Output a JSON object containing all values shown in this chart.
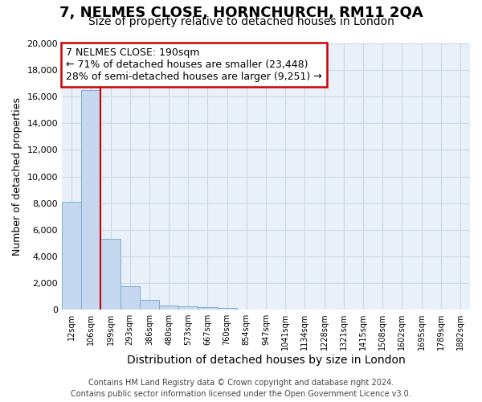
{
  "title": "7, NELMES CLOSE, HORNCHURCH, RM11 2QA",
  "subtitle": "Size of property relative to detached houses in London",
  "xlabel": "Distribution of detached houses by size in London",
  "ylabel": "Number of detached properties",
  "footer_line1": "Contains HM Land Registry data © Crown copyright and database right 2024.",
  "footer_line2": "Contains public sector information licensed under the Open Government Licence v3.0.",
  "annotation_title": "7 NELMES CLOSE: 190sqm",
  "annotation_line1": "← 71% of detached houses are smaller (23,448)",
  "annotation_line2": "28% of semi-detached houses are larger (9,251) →",
  "bar_color": "#c5d8f0",
  "bar_edge_color": "#7bafd4",
  "vline_color": "#cc0000",
  "annotation_box_edge_color": "#cc0000",
  "grid_color": "#c8d8e8",
  "background_color": "#eaf0f8",
  "categories": [
    "12sqm",
    "106sqm",
    "199sqm",
    "293sqm",
    "386sqm",
    "480sqm",
    "573sqm",
    "667sqm",
    "760sqm",
    "854sqm",
    "947sqm",
    "1041sqm",
    "1134sqm",
    "1228sqm",
    "1321sqm",
    "1415sqm",
    "1508sqm",
    "1602sqm",
    "1695sqm",
    "1789sqm",
    "1882sqm"
  ],
  "bar_heights": [
    8100,
    16500,
    5300,
    1750,
    750,
    325,
    225,
    175,
    150,
    0,
    0,
    0,
    0,
    0,
    0,
    0,
    0,
    0,
    0,
    0,
    0
  ],
  "vline_index": 1.5,
  "ylim": [
    0,
    20000
  ],
  "yticks": [
    0,
    2000,
    4000,
    6000,
    8000,
    10000,
    12000,
    14000,
    16000,
    18000,
    20000
  ],
  "title_fontsize": 13,
  "subtitle_fontsize": 10,
  "xlabel_fontsize": 10,
  "ylabel_fontsize": 9,
  "tick_fontsize": 8,
  "annotation_fontsize": 9,
  "footer_fontsize": 7
}
